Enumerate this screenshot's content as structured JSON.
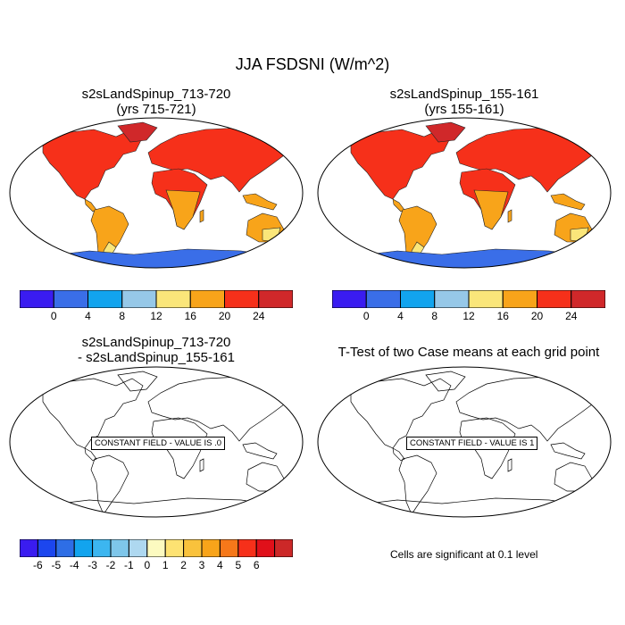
{
  "title": "JJA FSDSNI (W/m^2)",
  "panels": [
    {
      "title_line1": "s2sLandSpinup_713-720",
      "title_line2": "(yrs 715-721)"
    },
    {
      "title_line1": "s2sLandSpinup_155-161",
      "title_line2": "(yrs 155-161)"
    },
    {
      "title_line1": "s2sLandSpinup_713-720",
      "title_line2": "- s2sLandSpinup_155-161",
      "message": "CONSTANT FIELD - VALUE IS .0"
    },
    {
      "title_line1": "T-Test of two Case means at each grid point",
      "title_line2": "",
      "message": "CONSTANT FIELD - VALUE IS 1"
    }
  ],
  "top_colorbar": {
    "colors": [
      "#3a1cf0",
      "#3a6ee8",
      "#12a4ee",
      "#96c8e8",
      "#fae67a",
      "#f8a41a",
      "#f6301a",
      "#d0282a"
    ],
    "labels": [
      "0",
      "4",
      "8",
      "12",
      "16",
      "20",
      "24"
    ]
  },
  "diff_colorbar": {
    "colors": [
      "#3a1cf0",
      "#1c46ee",
      "#2e6ee6",
      "#12a4ee",
      "#3cb6f0",
      "#7ec6ea",
      "#aed8f0",
      "#fcfac0",
      "#fde272",
      "#f9c23c",
      "#f8a41a",
      "#f6781a",
      "#f6301a",
      "#e0101a",
      "#cc2828"
    ],
    "labels": [
      "-6",
      "-5",
      "-4",
      "-3",
      "-2",
      "-1",
      "0",
      "1",
      "2",
      "3",
      "4",
      "5",
      "6"
    ]
  },
  "significance_note": "Cells are significant at 0.1 level"
}
